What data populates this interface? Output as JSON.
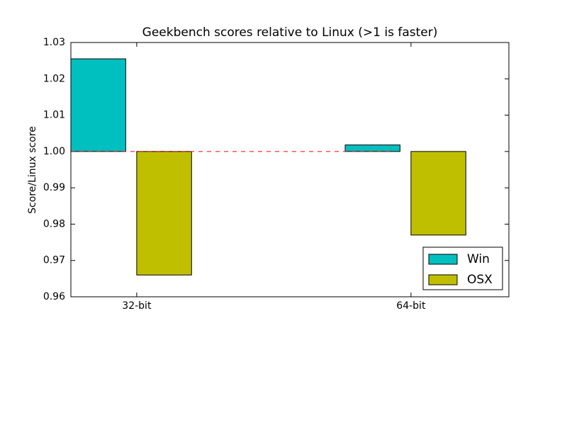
{
  "chart_data": {
    "type": "bar",
    "title": "Geekbench scores relative to Linux (>1 is faster)",
    "y_label": "Score/Linux score",
    "categories": [
      "32-bit",
      "64-bit"
    ],
    "series": [
      {
        "name": "Win",
        "color": "#00bfbf",
        "values": [
          1.0255,
          1.0018
        ]
      },
      {
        "name": "OSX",
        "color": "#bfbf00",
        "values": [
          0.966,
          0.977
        ]
      }
    ],
    "baseline": 1,
    "baseline_color": "#ff0000",
    "ylim": [
      0.96,
      1.03
    ],
    "yticks": [
      0.96,
      0.97,
      0.98,
      0.99,
      {
        "value": 1,
        "label": "1.00"
      },
      1.01,
      1.02,
      1.03
    ],
    "grid": false,
    "legend": "lower right"
  }
}
